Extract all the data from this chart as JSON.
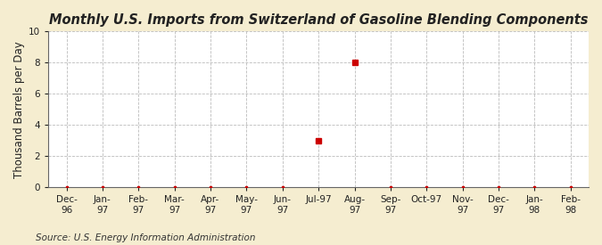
{
  "title": "Monthly U.S. Imports from Switzerland of Gasoline Blending Components",
  "ylabel": "Thousand Barrels per Day",
  "source": "Source: U.S. Energy Information Administration",
  "background_color": "#F5EDD0",
  "plot_bg_color": "#FFFFFF",
  "categories": [
    "Dec-\n96",
    "Jan-\n97",
    "Feb-\n97",
    "Mar-\n97",
    "Apr-\n97",
    "May-\n97",
    "Jun-\n97",
    "Jul-97",
    "Aug-\n97",
    "Sep-\n97",
    "Oct-97",
    "Nov-\n97",
    "Dec-\n97",
    "Jan-\n98",
    "Feb-\n98"
  ],
  "values": [
    0,
    0,
    0,
    0,
    0,
    0,
    0,
    3,
    8,
    0,
    0,
    0,
    0,
    0,
    0
  ],
  "ylim": [
    0,
    10
  ],
  "yticks": [
    0,
    2,
    4,
    6,
    8,
    10
  ],
  "marker_color": "#CC0000",
  "marker_size": 4,
  "title_fontsize": 10.5,
  "label_fontsize": 8.5,
  "tick_fontsize": 7.5,
  "source_fontsize": 7.5
}
